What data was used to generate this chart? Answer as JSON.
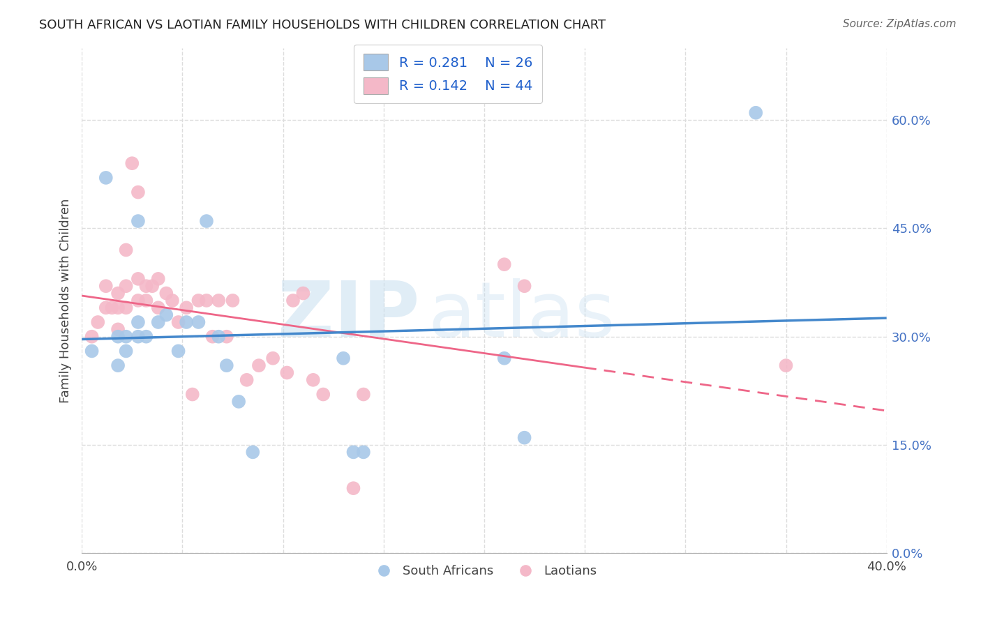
{
  "title": "SOUTH AFRICAN VS LAOTIAN FAMILY HOUSEHOLDS WITH CHILDREN CORRELATION CHART",
  "source": "Source: ZipAtlas.com",
  "ylabel": "Family Households with Children",
  "xlim": [
    0.0,
    0.4
  ],
  "ylim": [
    0.0,
    0.7
  ],
  "xticks": [
    0.0,
    0.05,
    0.1,
    0.15,
    0.2,
    0.25,
    0.3,
    0.35,
    0.4
  ],
  "ytick_vals": [
    0.0,
    0.15,
    0.3,
    0.45,
    0.6
  ],
  "ytick_labels": [
    "0.0%",
    "15.0%",
    "30.0%",
    "45.0%",
    "60.0%"
  ],
  "watermark_zip": "ZIP",
  "watermark_atlas": "atlas",
  "legend_blue_r": "R = 0.281",
  "legend_blue_n": "N = 26",
  "legend_pink_r": "R = 0.142",
  "legend_pink_n": "N = 44",
  "blue_scatter_color": "#a8c8e8",
  "pink_scatter_color": "#f4b8c8",
  "blue_line_color": "#4488cc",
  "pink_line_color": "#ee6688",
  "background_color": "#ffffff",
  "grid_color": "#dddddd",
  "south_africans_x": [
    0.005,
    0.012,
    0.018,
    0.018,
    0.022,
    0.022,
    0.028,
    0.028,
    0.028,
    0.032,
    0.038,
    0.042,
    0.048,
    0.052,
    0.058,
    0.062,
    0.068,
    0.072,
    0.078,
    0.085,
    0.13,
    0.135,
    0.14,
    0.21,
    0.22,
    0.335
  ],
  "south_africans_y": [
    0.28,
    0.52,
    0.3,
    0.26,
    0.3,
    0.28,
    0.46,
    0.32,
    0.3,
    0.3,
    0.32,
    0.33,
    0.28,
    0.32,
    0.32,
    0.46,
    0.3,
    0.26,
    0.21,
    0.14,
    0.27,
    0.14,
    0.14,
    0.27,
    0.16,
    0.61
  ],
  "laotians_x": [
    0.005,
    0.008,
    0.012,
    0.012,
    0.015,
    0.018,
    0.018,
    0.018,
    0.022,
    0.022,
    0.022,
    0.025,
    0.028,
    0.028,
    0.028,
    0.032,
    0.032,
    0.035,
    0.038,
    0.038,
    0.042,
    0.045,
    0.048,
    0.052,
    0.055,
    0.058,
    0.062,
    0.065,
    0.068,
    0.072,
    0.075,
    0.082,
    0.088,
    0.095,
    0.102,
    0.105,
    0.11,
    0.115,
    0.12,
    0.135,
    0.14,
    0.21,
    0.22,
    0.35
  ],
  "laotians_y": [
    0.3,
    0.32,
    0.37,
    0.34,
    0.34,
    0.36,
    0.34,
    0.31,
    0.42,
    0.37,
    0.34,
    0.54,
    0.5,
    0.38,
    0.35,
    0.37,
    0.35,
    0.37,
    0.38,
    0.34,
    0.36,
    0.35,
    0.32,
    0.34,
    0.22,
    0.35,
    0.35,
    0.3,
    0.35,
    0.3,
    0.35,
    0.24,
    0.26,
    0.27,
    0.25,
    0.35,
    0.36,
    0.24,
    0.22,
    0.09,
    0.22,
    0.4,
    0.37,
    0.26
  ]
}
